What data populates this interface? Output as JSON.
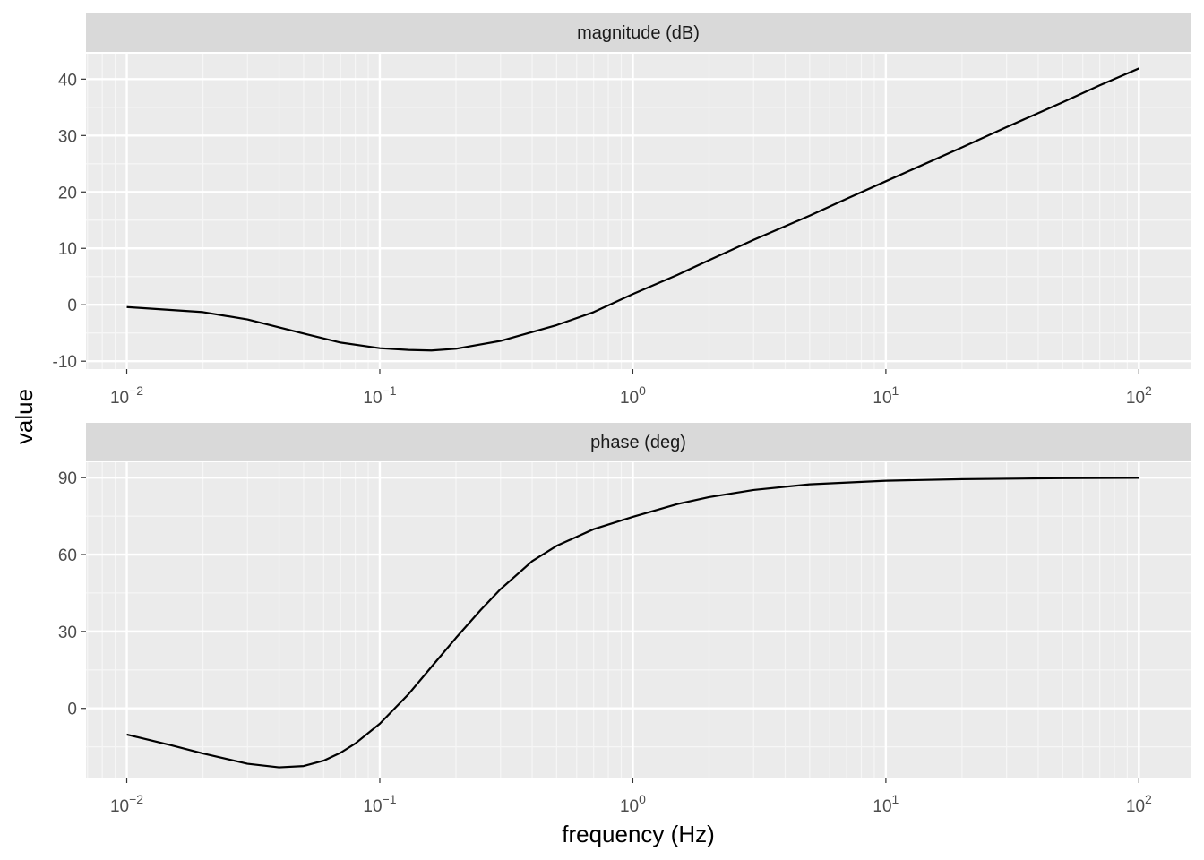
{
  "chart_data": {
    "type": "line",
    "xlabel": "frequency (Hz)",
    "ylabel": "value",
    "x_scale": "log10",
    "xlim": [
      0.0069,
      160
    ],
    "x_ticks": [
      {
        "value": 0.01,
        "base": "10",
        "exp": "−2"
      },
      {
        "value": 0.1,
        "base": "10",
        "exp": "−1"
      },
      {
        "value": 1,
        "base": "10",
        "exp": "0"
      },
      {
        "value": 10,
        "base": "10",
        "exp": "1"
      },
      {
        "value": 100,
        "base": "10",
        "exp": "2"
      }
    ],
    "panels": [
      {
        "strip": "magnitude (dB)",
        "ylim": [
          -11.4,
          44.5
        ],
        "y_ticks": [
          -10,
          0,
          10,
          20,
          30,
          40
        ],
        "y_tick_labels": [
          "-10",
          "0",
          "10",
          "20",
          "30",
          "40"
        ],
        "series": [
          {
            "x": [
              0.01,
              0.02,
              0.03,
              0.05,
              0.07,
              0.1,
              0.13,
              0.16,
              0.2,
              0.3,
              0.5,
              0.7,
              1,
              1.5,
              2,
              3,
              5,
              7,
              10,
              20,
              30,
              50,
              70,
              100
            ],
            "y": [
              -0.4,
              -1.3,
              -2.6,
              -5.1,
              -6.7,
              -7.7,
              -8.0,
              -8.1,
              -7.8,
              -6.4,
              -3.6,
              -1.3,
              1.9,
              5.3,
              7.9,
              11.5,
              15.8,
              18.8,
              21.9,
              27.9,
              31.5,
              35.9,
              38.9,
              41.9
            ]
          }
        ]
      },
      {
        "strip": "phase (deg)",
        "ylim": [
          -27,
          96
        ],
        "y_ticks": [
          0,
          30,
          60,
          90
        ],
        "y_tick_labels": [
          "0",
          "30",
          "60",
          "90"
        ],
        "series": [
          {
            "x": [
              0.01,
              0.015,
              0.02,
              0.03,
              0.04,
              0.05,
              0.06,
              0.07,
              0.08,
              0.1,
              0.13,
              0.16,
              0.2,
              0.25,
              0.3,
              0.4,
              0.5,
              0.7,
              1,
              1.5,
              2,
              3,
              5,
              10,
              20,
              50,
              100
            ],
            "y": [
              -10.2,
              -14.4,
              -17.6,
              -21.6,
              -23.0,
              -22.5,
              -20.4,
              -17.3,
              -13.7,
              -6.0,
              5.6,
              16.2,
              27.5,
              38.3,
              46.5,
              57.4,
              63.4,
              69.9,
              74.7,
              79.7,
              82.4,
              85.2,
              87.4,
              88.8,
              89.4,
              89.8,
              89.9
            ]
          }
        ]
      }
    ]
  }
}
